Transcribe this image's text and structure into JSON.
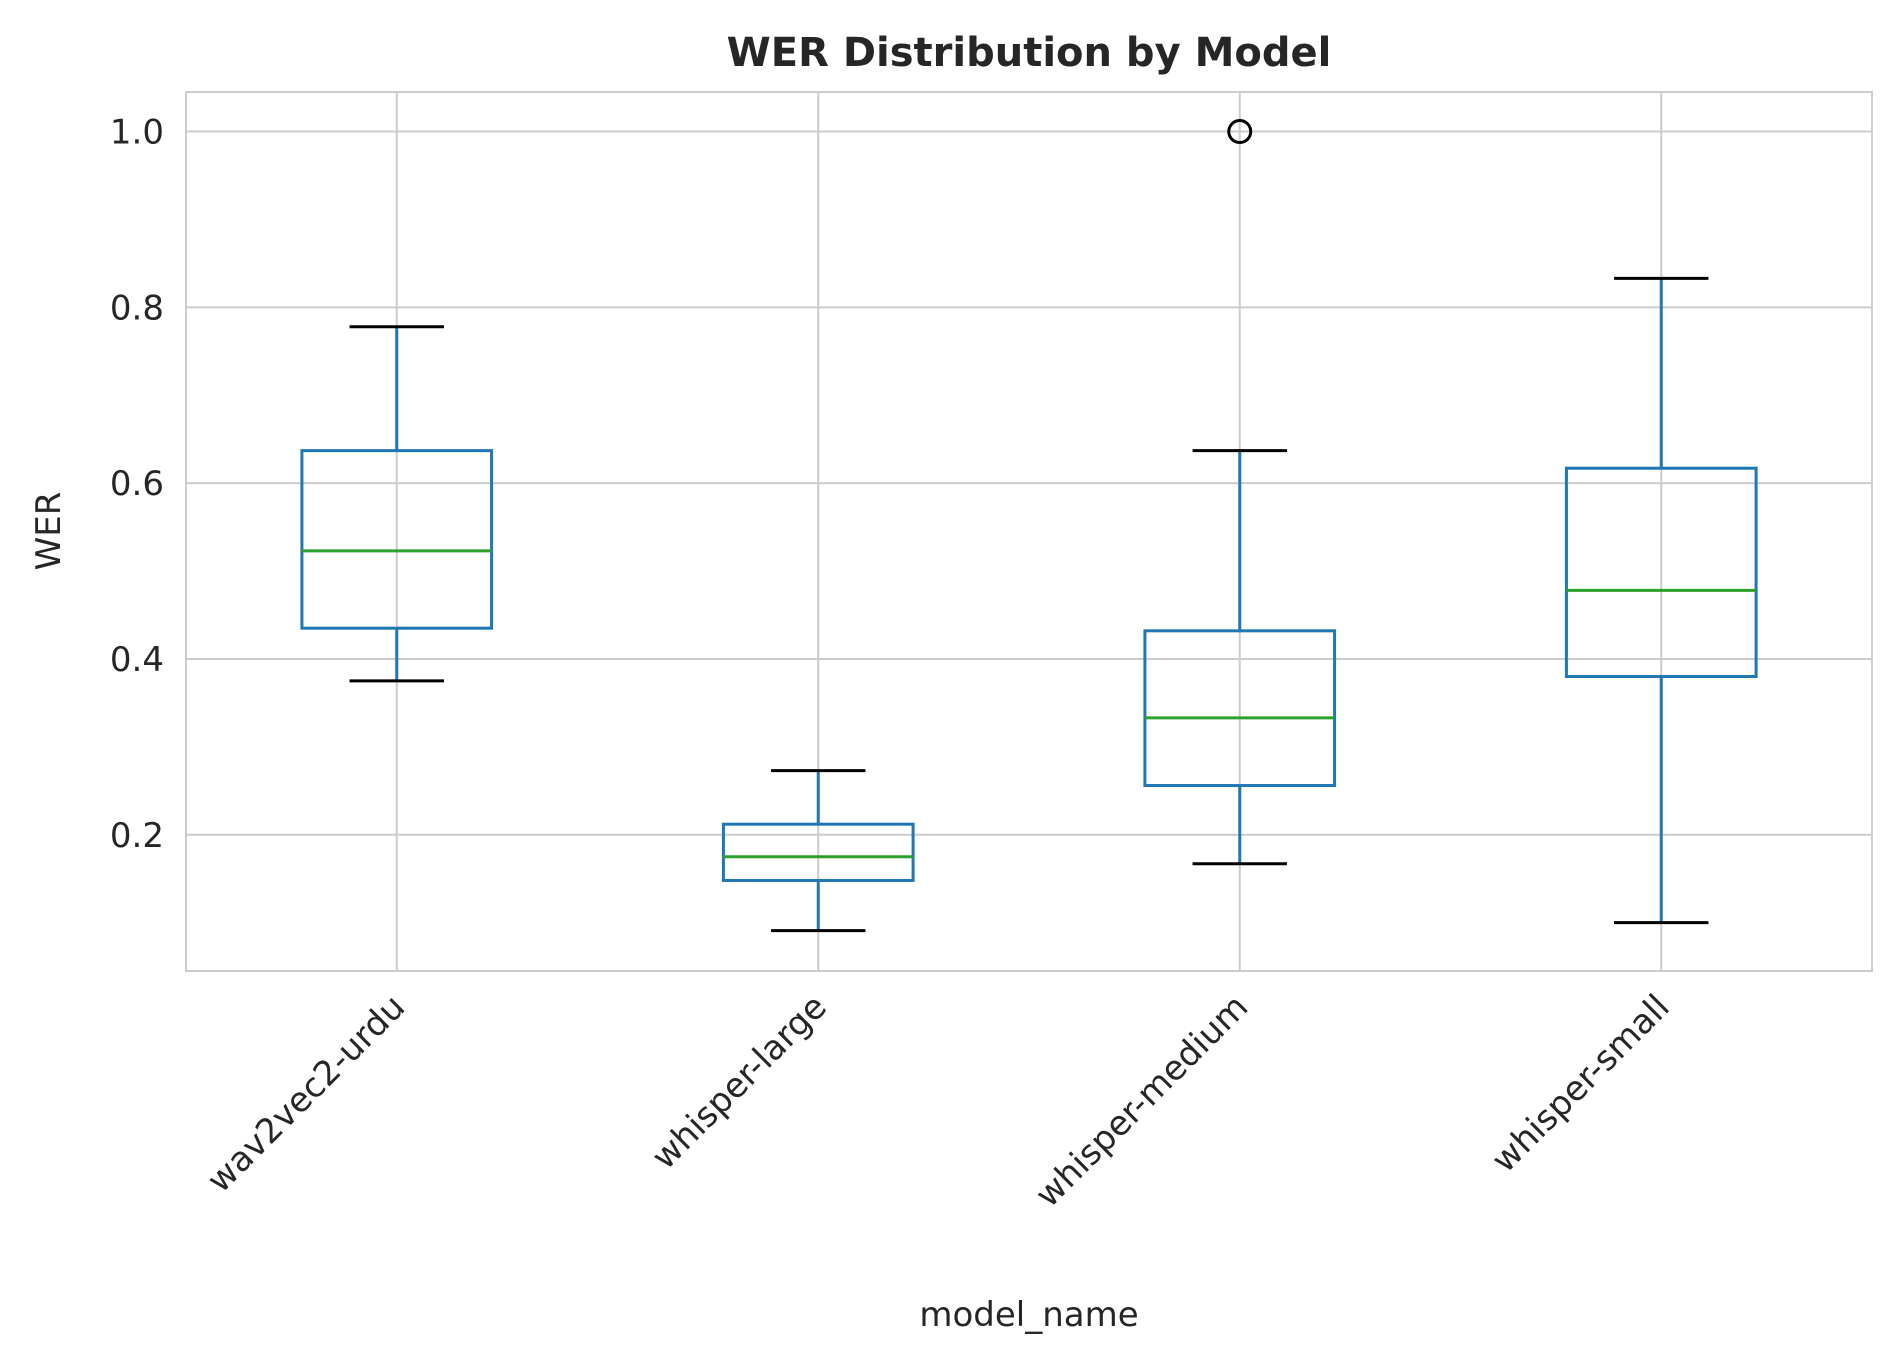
{
  "chart_data": {
    "type": "box",
    "title": "WER Distribution by Model",
    "xlabel": "model_name",
    "ylabel": "WER",
    "ylim": [
      0.045,
      1.045
    ],
    "yticks": [
      "0.2",
      "0.4",
      "0.6",
      "0.8",
      "1.0"
    ],
    "grid": true,
    "categories": [
      "wav2vec2-urdu",
      "whisper-large",
      "whisper-medium",
      "whisper-small"
    ],
    "boxes": [
      {
        "whisker_low": 0.375,
        "q1": 0.435,
        "median": 0.523,
        "q3": 0.637,
        "whisker_high": 0.778,
        "outliers": []
      },
      {
        "whisker_low": 0.091,
        "q1": 0.148,
        "median": 0.175,
        "q3": 0.212,
        "whisker_high": 0.273,
        "outliers": []
      },
      {
        "whisker_low": 0.167,
        "q1": 0.256,
        "median": 0.333,
        "q3": 0.432,
        "whisker_high": 0.637,
        "outliers": [
          1.0
        ]
      },
      {
        "whisker_low": 0.1,
        "q1": 0.38,
        "median": 0.478,
        "q3": 0.617,
        "whisker_high": 0.833,
        "outliers": []
      }
    ],
    "colors": {
      "box": "#1f77b4",
      "median": "#2ca02c",
      "whisker_cap": "#000000",
      "outlier": "#000000",
      "grid": "#cccccc"
    }
  }
}
